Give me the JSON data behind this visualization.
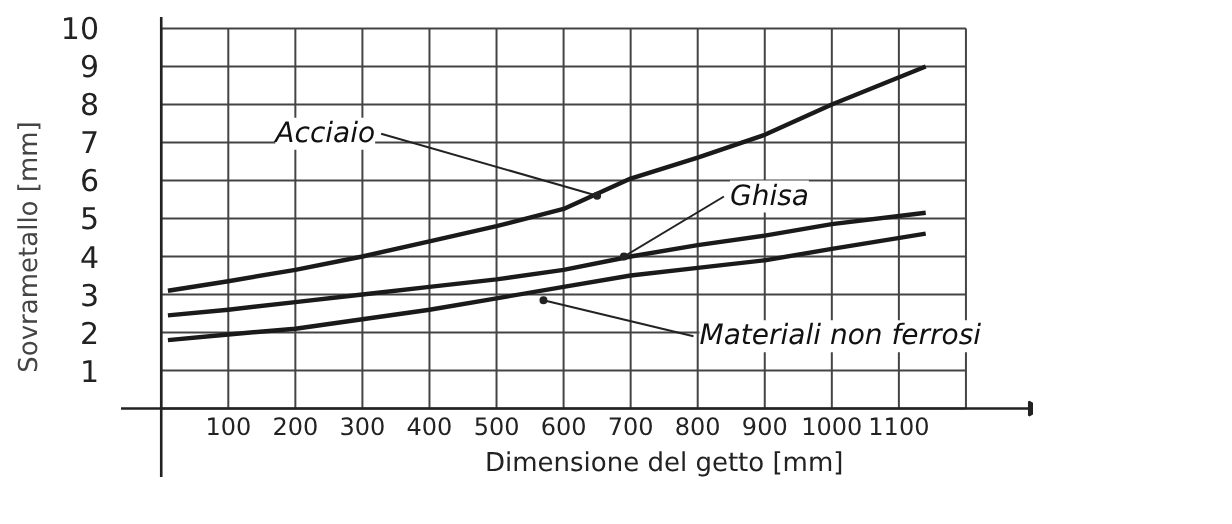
{
  "chart_data": {
    "type": "line",
    "xlabel": "Dimensione del getto [mm]",
    "ylabel": "Sovrametallo [mm]",
    "xlim": [
      -60,
      1300
    ],
    "ylim": [
      -1.8,
      10.3
    ],
    "xticks": [
      {
        "value": 0,
        "label": null
      },
      100,
      200,
      300,
      400,
      500,
      600,
      700,
      800,
      900,
      1000,
      1100,
      {
        "value": 1200,
        "label": null
      }
    ],
    "yticks": [
      {
        "value": 0,
        "label": null
      },
      1,
      2,
      3,
      4,
      5,
      6,
      7,
      8,
      9,
      10
    ],
    "grid": true,
    "line_style": "solid",
    "marker": "none",
    "series": [
      {
        "color": "#1a1a1a",
        "x": [
          10,
          100,
          200,
          300,
          400,
          500,
          600,
          700,
          800,
          900,
          1000,
          1140
        ],
        "values": [
          3.1,
          3.35,
          3.65,
          4.0,
          4.4,
          4.8,
          5.25,
          6.05,
          6.6,
          7.2,
          8.0,
          9.0
        ]
      },
      {
        "color": "#1a1a1a",
        "x": [
          10,
          100,
          200,
          300,
          400,
          500,
          600,
          700,
          800,
          900,
          1000,
          1140
        ],
        "values": [
          2.45,
          2.6,
          2.8,
          3.0,
          3.2,
          3.4,
          3.65,
          4.0,
          4.3,
          4.55,
          4.85,
          5.15
        ]
      },
      {
        "color": "#1a1a1a",
        "x": [
          10,
          100,
          200,
          300,
          400,
          500,
          600,
          700,
          800,
          900,
          1000,
          1140
        ],
        "values": [
          1.8,
          1.95,
          2.1,
          2.35,
          2.6,
          2.9,
          3.2,
          3.5,
          3.7,
          3.9,
          4.2,
          4.6
        ]
      }
    ],
    "annotations": [
      {
        "text": "Acciaio",
        "x": 650,
        "y": 5.6
      },
      {
        "text": "Ghisa",
        "x": 690,
        "y": 4.0
      },
      {
        "text": "Materiali non ferrosi",
        "x": 570,
        "y": 2.85
      }
    ]
  }
}
